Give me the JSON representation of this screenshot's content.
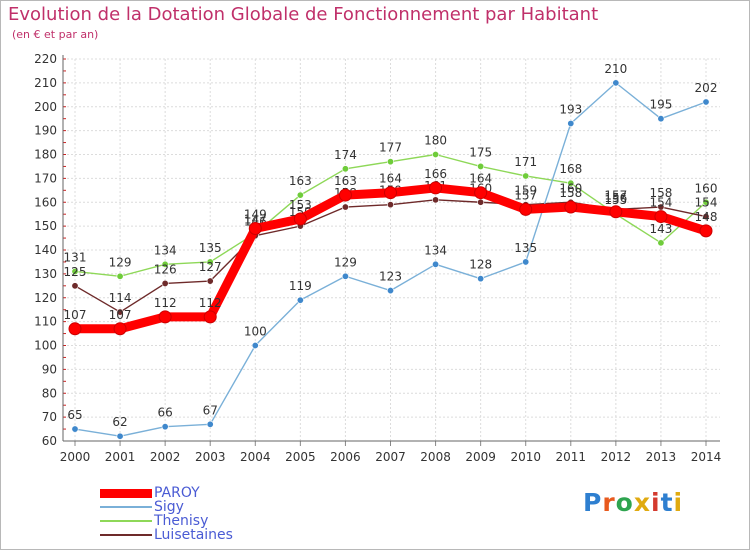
{
  "header": {
    "title": "Evolution de la Dotation Globale de Fonctionnement par Habitant",
    "subtitle": "(en € et par an)"
  },
  "logo": {
    "text": "Proxiti",
    "letter_colors": [
      "#2e7fd0",
      "#e85a1e",
      "#2ea44f",
      "#e0aa10",
      "#d43a2e",
      "#2e7fd0",
      "#e0aa10"
    ]
  },
  "chart_data": {
    "type": "line",
    "title": "Evolution de la Dotation Globale de Fonctionnement par Habitant",
    "subtitle": "(en € et par an)",
    "xlabel": "",
    "ylabel": "",
    "x": [
      "2000",
      "2001",
      "2002",
      "2003",
      "2004",
      "2005",
      "2006",
      "2007",
      "2008",
      "2009",
      "2010",
      "2011",
      "2012",
      "2013",
      "2014"
    ],
    "ylim": [
      60,
      220
    ],
    "yticks": [
      60,
      70,
      80,
      90,
      100,
      110,
      120,
      130,
      140,
      150,
      160,
      170,
      180,
      190,
      200,
      210,
      220
    ],
    "grid": true,
    "legend_position": "bottom-left",
    "series": [
      {
        "name": "Thenisy",
        "color": "#8ed858",
        "marker": "#6fcc3a",
        "values": [
          131,
          129,
          134,
          135,
          147,
          163,
          174,
          177,
          180,
          175,
          171,
          168,
          155,
          143,
          160
        ]
      },
      {
        "name": "Luisetaines",
        "color": "#6e2a2a",
        "marker": "#6e2a2a",
        "values": [
          125,
          114,
          126,
          127,
          146,
          150,
          158,
          159,
          161,
          160,
          159,
          160,
          157,
          158,
          154
        ]
      },
      {
        "name": "Sigy",
        "color": "#7ab0d8",
        "marker": "#3f88cc",
        "values": [
          65,
          62,
          66,
          67,
          100,
          119,
          129,
          123,
          134,
          128,
          135,
          193,
          210,
          195,
          202
        ]
      },
      {
        "name": "PAROY",
        "color": "#ff0000",
        "marker": "#ff0000",
        "values": [
          107,
          107,
          112,
          112,
          149,
          153,
          163,
          164,
          166,
          164,
          157,
          158,
          156,
          154,
          148
        ],
        "bold": true
      }
    ]
  }
}
